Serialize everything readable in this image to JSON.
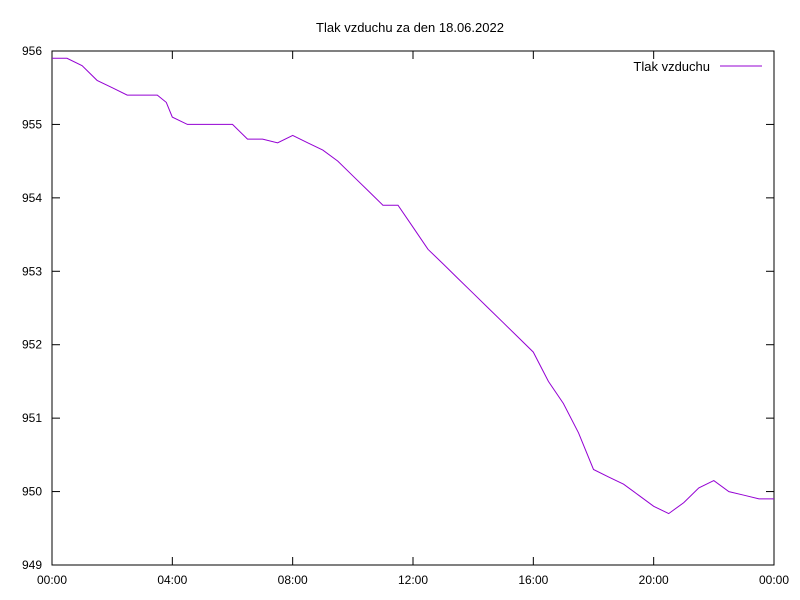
{
  "chart_data": {
    "type": "line",
    "title": "Tlak vzduchu za den 18.06.2022",
    "xlabel": "",
    "ylabel": "",
    "x_ticks": [
      "00:00",
      "04:00",
      "08:00",
      "12:00",
      "16:00",
      "20:00",
      "00:00"
    ],
    "y_ticks": [
      "949",
      "950",
      "951",
      "952",
      "953",
      "954",
      "955",
      "956"
    ],
    "xlim_hours": [
      0,
      24
    ],
    "ylim": [
      949,
      956
    ],
    "grid": false,
    "legend_position": "top-right",
    "colors": {
      "series": "#9400d3",
      "axes": "#000000"
    },
    "series": [
      {
        "name": "Tlak vzduchu",
        "points": [
          [
            0.0,
            955.9
          ],
          [
            0.5,
            955.9
          ],
          [
            1.0,
            955.8
          ],
          [
            1.5,
            955.6
          ],
          [
            2.0,
            955.5
          ],
          [
            2.5,
            955.4
          ],
          [
            3.0,
            955.4
          ],
          [
            3.5,
            955.4
          ],
          [
            3.8,
            955.3
          ],
          [
            4.0,
            955.1
          ],
          [
            4.5,
            955.0
          ],
          [
            5.0,
            955.0
          ],
          [
            5.5,
            955.0
          ],
          [
            6.0,
            955.0
          ],
          [
            6.5,
            954.8
          ],
          [
            7.0,
            954.8
          ],
          [
            7.5,
            954.75
          ],
          [
            8.0,
            954.85
          ],
          [
            8.5,
            954.75
          ],
          [
            9.0,
            954.65
          ],
          [
            9.5,
            954.5
          ],
          [
            10.0,
            954.3
          ],
          [
            10.5,
            954.1
          ],
          [
            11.0,
            953.9
          ],
          [
            11.5,
            953.9
          ],
          [
            12.0,
            953.6
          ],
          [
            12.5,
            953.3
          ],
          [
            13.0,
            953.1
          ],
          [
            13.5,
            952.9
          ],
          [
            14.0,
            952.7
          ],
          [
            14.5,
            952.5
          ],
          [
            15.0,
            952.3
          ],
          [
            15.5,
            952.1
          ],
          [
            16.0,
            951.9
          ],
          [
            16.5,
            951.5
          ],
          [
            17.0,
            951.2
          ],
          [
            17.5,
            950.8
          ],
          [
            18.0,
            950.3
          ],
          [
            18.5,
            950.2
          ],
          [
            19.0,
            950.1
          ],
          [
            19.5,
            949.95
          ],
          [
            20.0,
            949.8
          ],
          [
            20.5,
            949.7
          ],
          [
            21.0,
            949.85
          ],
          [
            21.5,
            950.05
          ],
          [
            22.0,
            950.15
          ],
          [
            22.5,
            950.0
          ],
          [
            23.0,
            949.95
          ],
          [
            23.5,
            949.9
          ],
          [
            24.0,
            949.9
          ]
        ]
      }
    ]
  }
}
